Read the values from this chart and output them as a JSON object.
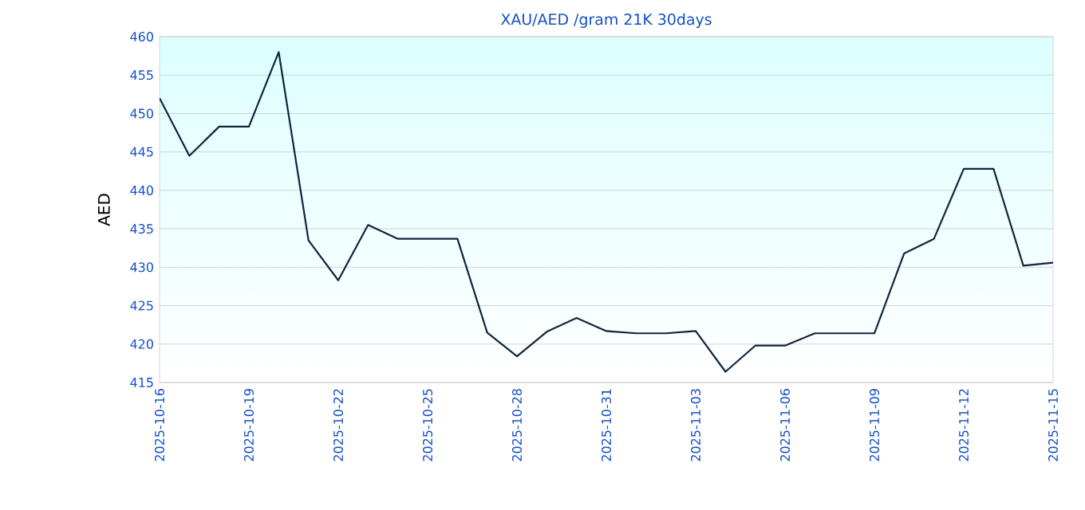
{
  "chart_data": {
    "type": "line",
    "title": "XAU/AED /gram 21K 30days",
    "ylabel": "AED",
    "x": [
      "2025-10-16",
      "2025-10-17",
      "2025-10-18",
      "2025-10-19",
      "2025-10-20",
      "2025-10-21",
      "2025-10-22",
      "2025-10-23",
      "2025-10-24",
      "2025-10-25",
      "2025-10-26",
      "2025-10-27",
      "2025-10-28",
      "2025-10-29",
      "2025-10-30",
      "2025-10-31",
      "2025-11-01",
      "2025-11-02",
      "2025-11-03",
      "2025-11-04",
      "2025-11-05",
      "2025-11-06",
      "2025-11-07",
      "2025-11-08",
      "2025-11-09",
      "2025-11-10",
      "2025-11-11",
      "2025-11-12",
      "2025-11-13",
      "2025-11-14",
      "2025-11-15"
    ],
    "series": [
      {
        "color": "#10243f",
        "values": [
          452,
          444.5,
          448.3,
          448.3,
          458,
          433.5,
          428.3,
          435.5,
          433.7,
          433.7,
          433.7,
          421.5,
          418.4,
          421.6,
          423.4,
          421.7,
          421.4,
          421.4,
          421.7,
          416.4,
          419.8,
          419.8,
          421.4,
          421.4,
          421.4,
          431.8,
          433.7,
          442.8,
          442.8,
          430.2,
          430.6
        ]
      }
    ],
    "xlim": [
      "2025-10-16",
      "2025-11-15"
    ],
    "xticks": [
      "2025-10-16",
      "2025-10-19",
      "2025-10-22",
      "2025-10-25",
      "2025-10-28",
      "2025-10-31",
      "2025-11-03",
      "2025-11-06",
      "2025-11-09",
      "2025-11-12",
      "2025-11-15"
    ],
    "ylim": [
      415,
      460
    ],
    "yticks": [
      415,
      420,
      425,
      430,
      435,
      440,
      445,
      450,
      455,
      460
    ],
    "grid": "y",
    "marker": "none",
    "line_style": "solid"
  }
}
